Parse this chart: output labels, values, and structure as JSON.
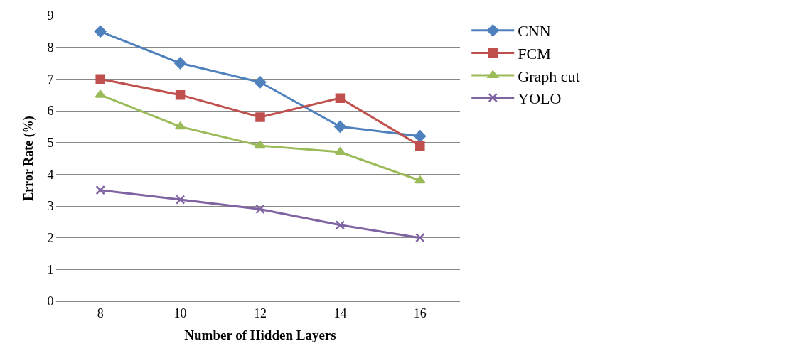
{
  "chart_data": {
    "type": "line",
    "xlabel": "Number of Hidden Layers",
    "ylabel": "Error Rate (%)",
    "categories": [
      "8",
      "10",
      "12",
      "14",
      "16"
    ],
    "series": [
      {
        "name": "CNN",
        "color": "#4f81bd",
        "values": [
          8.5,
          7.5,
          6.9,
          5.5,
          5.2
        ],
        "marker": "diamond"
      },
      {
        "name": "FCM",
        "color": "#c0504d",
        "values": [
          7.0,
          6.5,
          5.8,
          6.4,
          4.9
        ],
        "marker": "square"
      },
      {
        "name": "Graph cut",
        "color": "#9bbb59",
        "values": [
          6.5,
          5.5,
          4.9,
          4.7,
          3.8
        ],
        "marker": "triangle"
      },
      {
        "name": "YOLO",
        "color": "#8064a2",
        "values": [
          3.5,
          3.2,
          2.9,
          2.4,
          2.0
        ],
        "marker": "cross"
      }
    ],
    "ylim": [
      0,
      9
    ],
    "yticks": [
      0,
      1,
      2,
      3,
      4,
      5,
      6,
      7,
      8,
      9
    ],
    "grid": "y",
    "legend": "right",
    "line_style": "solid"
  }
}
